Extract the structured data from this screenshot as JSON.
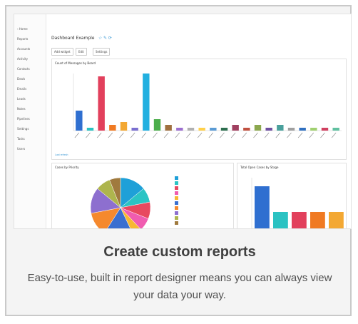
{
  "sidebar": {
    "items": [
      "‹ Home",
      "Reports",
      "Accounts",
      "Activity",
      "Contacts",
      "Deals",
      "Emails",
      "Leads",
      "Notes",
      "Pipelines",
      "Settings",
      "Tasks",
      "Users"
    ]
  },
  "dashboard": {
    "title": "Dashboard Example",
    "title_icons": "☆ ✎ ⟳",
    "toolbar": [
      "Add widget",
      "Edit",
      "Settings"
    ]
  },
  "bar_panel": {
    "title": "Count of Messages by Board",
    "footer": "Last refresh"
  },
  "pie_panel": {
    "title": "Cases by Priority"
  },
  "right_panel": {
    "title": "Total Open Cases by Stage"
  },
  "caption": {
    "title": "Create custom reports",
    "body": "Easy-to-use, built in report designer means you can always view your data your way."
  },
  "chart_data": [
    {
      "type": "bar",
      "values": [
        7,
        1,
        19,
        2,
        3,
        1,
        20,
        4,
        2,
        1,
        1,
        1,
        1,
        1,
        2,
        1,
        2,
        1,
        2,
        1,
        1,
        1,
        1,
        1
      ],
      "colors": [
        "#2f6fd0",
        "#2bc2c2",
        "#e2405c",
        "#f07a22",
        "#f3a833",
        "#7a6fd0",
        "#22b0e0",
        "#4cae4c",
        "#a07040",
        "#9c6fcf",
        "#b0b0b0",
        "#ffd04a",
        "#5a9bd4",
        "#2d6e4f",
        "#a04060",
        "#c05040",
        "#8ca84f",
        "#6f4fa0",
        "#4aa09c",
        "#a0a0a0",
        "#3070c0",
        "#a0d070",
        "#d04060",
        "#60c0a0"
      ],
      "ylim": [
        0,
        20
      ]
    },
    {
      "type": "pie",
      "values": [
        14,
        8,
        9,
        7,
        5,
        16,
        13,
        14,
        8,
        6
      ],
      "colors": [
        "#1fa0d8",
        "#2bc4c4",
        "#e8485f",
        "#f05cb0",
        "#f7b733",
        "#3a6fd0",
        "#f5892e",
        "#8d6fcf",
        "#aeb54d",
        "#a07a3e"
      ]
    },
    {
      "type": "bar",
      "values": [
        5,
        2,
        2,
        2,
        2
      ],
      "colors": [
        "#2f6fd0",
        "#2bc2c2",
        "#e2405c",
        "#f07a22",
        "#f3a833"
      ],
      "ylim": [
        0,
        6
      ]
    }
  ]
}
